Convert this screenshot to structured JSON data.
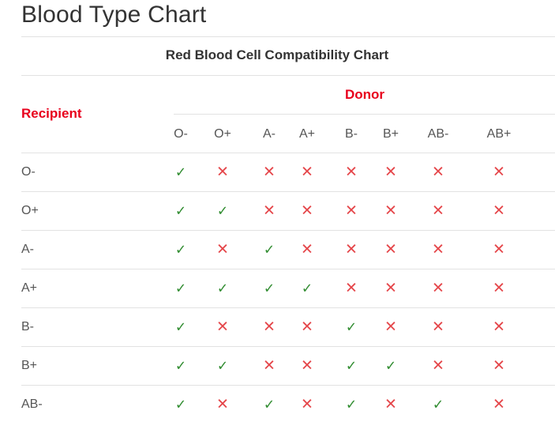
{
  "page_title": "Blood Type Chart",
  "chart": {
    "subtitle": "Red Blood Cell Compatibility Chart",
    "recipient_label": "Recipient",
    "donor_label": "Donor",
    "donor_types": [
      "O-",
      "O+",
      "A-",
      "A+",
      "B-",
      "B+",
      "AB-",
      "AB+"
    ],
    "rows": [
      {
        "recipient": "O-",
        "compat": [
          true,
          false,
          false,
          false,
          false,
          false,
          false,
          false
        ]
      },
      {
        "recipient": "O+",
        "compat": [
          true,
          true,
          false,
          false,
          false,
          false,
          false,
          false
        ]
      },
      {
        "recipient": "A-",
        "compat": [
          true,
          false,
          true,
          false,
          false,
          false,
          false,
          false
        ]
      },
      {
        "recipient": "A+",
        "compat": [
          true,
          true,
          true,
          true,
          false,
          false,
          false,
          false
        ]
      },
      {
        "recipient": "B-",
        "compat": [
          true,
          false,
          false,
          false,
          true,
          false,
          false,
          false
        ]
      },
      {
        "recipient": "B+",
        "compat": [
          true,
          true,
          false,
          false,
          true,
          true,
          false,
          false
        ]
      },
      {
        "recipient": "AB-",
        "compat": [
          true,
          false,
          true,
          false,
          true,
          false,
          true,
          false
        ]
      }
    ],
    "symbols": {
      "compatible": "✓",
      "incompatible": "✕"
    },
    "colors": {
      "accent_red": "#e8001c",
      "check_green": "#2e8b2e",
      "cross_red": "#e5474b"
    }
  }
}
